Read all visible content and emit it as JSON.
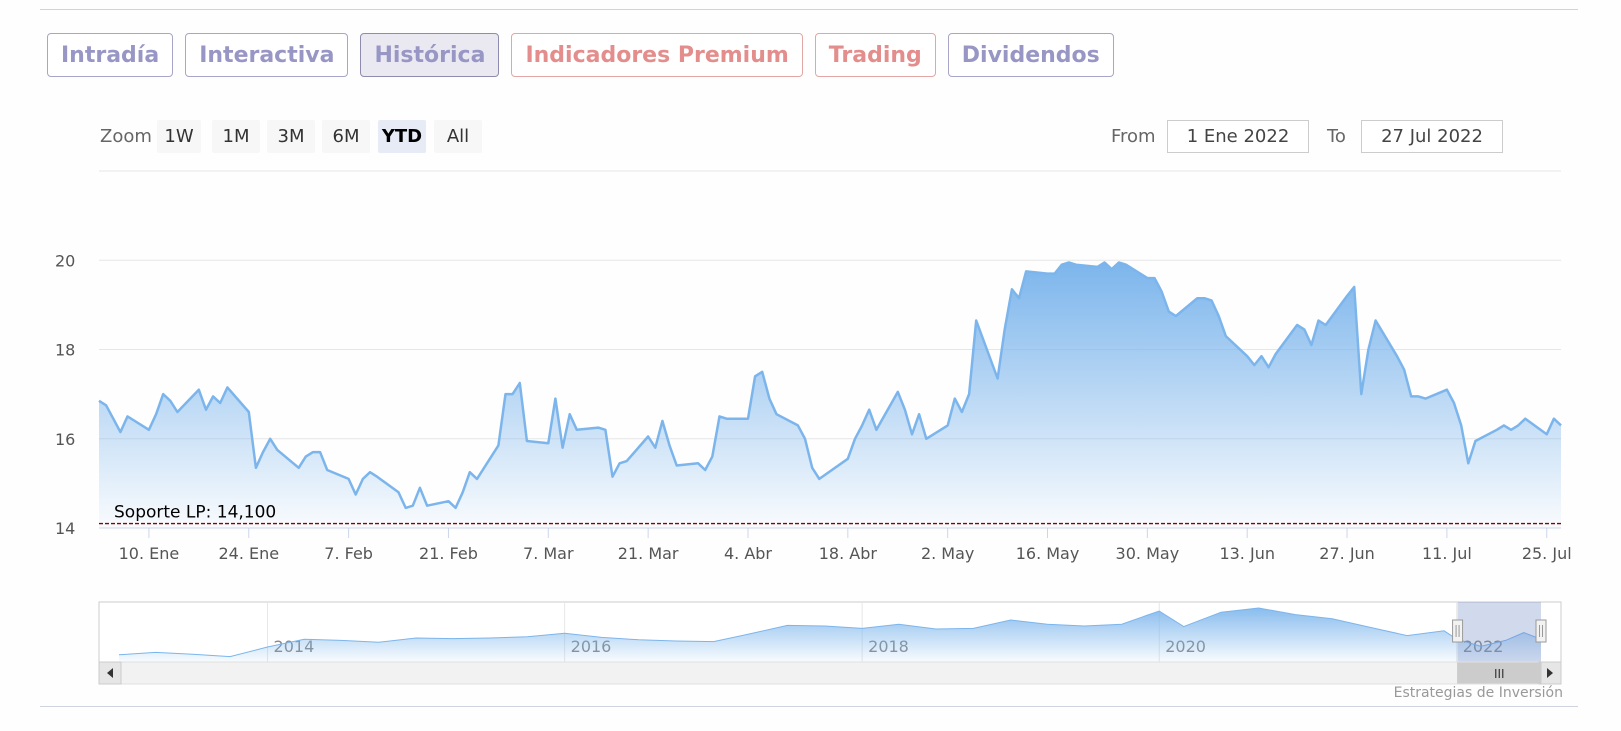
{
  "tabs": [
    {
      "label": "Intradía",
      "style": "normal"
    },
    {
      "label": "Interactiva",
      "style": "normal"
    },
    {
      "label": "Histórica",
      "style": "active"
    },
    {
      "label": "Indicadores Premium",
      "style": "premium"
    },
    {
      "label": "Trading",
      "style": "premium"
    },
    {
      "label": "Dividendos",
      "style": "normal"
    }
  ],
  "range_selector": {
    "zoom_label": "Zoom",
    "buttons": [
      "1W",
      "1M",
      "3M",
      "6M",
      "YTD",
      "All"
    ],
    "selected": "YTD",
    "from_label": "From",
    "from_value": "1 Ene 2022",
    "to_label": "To",
    "to_value": "27 Jul 2022"
  },
  "credit": "Estrategias de Inversión",
  "colors": {
    "series_line": "#7cb5ec",
    "support_line": "#8b0000",
    "tab_text": "#9896c5",
    "premium_text": "#e38e8c"
  },
  "chart_data": {
    "type": "area",
    "ylim": [
      14,
      22
    ],
    "yticks": [
      14,
      16,
      18,
      20
    ],
    "xlim": [
      "2022-01-03",
      "2022-07-27"
    ],
    "xticks": [
      {
        "date": "2022-01-10",
        "label": "10. Ene"
      },
      {
        "date": "2022-01-24",
        "label": "24. Ene"
      },
      {
        "date": "2022-02-07",
        "label": "7. Feb"
      },
      {
        "date": "2022-02-21",
        "label": "21. Feb"
      },
      {
        "date": "2022-03-07",
        "label": "7. Mar"
      },
      {
        "date": "2022-03-21",
        "label": "21. Mar"
      },
      {
        "date": "2022-04-04",
        "label": "4. Abr"
      },
      {
        "date": "2022-04-18",
        "label": "18. Abr"
      },
      {
        "date": "2022-05-02",
        "label": "2. May"
      },
      {
        "date": "2022-05-16",
        "label": "16. May"
      },
      {
        "date": "2022-05-30",
        "label": "30. May"
      },
      {
        "date": "2022-06-13",
        "label": "13. Jun"
      },
      {
        "date": "2022-06-27",
        "label": "27. Jun"
      },
      {
        "date": "2022-07-11",
        "label": "11. Jul"
      },
      {
        "date": "2022-07-25",
        "label": "25. Jul"
      }
    ],
    "support": {
      "value": 14.1,
      "label": "Soporte LP: 14,100"
    },
    "points": [
      [
        "2022-01-03",
        16.85
      ],
      [
        "2022-01-04",
        16.75
      ],
      [
        "2022-01-05",
        16.45
      ],
      [
        "2022-01-06",
        16.15
      ],
      [
        "2022-01-07",
        16.5
      ],
      [
        "2022-01-10",
        16.2
      ],
      [
        "2022-01-11",
        16.55
      ],
      [
        "2022-01-12",
        17.0
      ],
      [
        "2022-01-13",
        16.85
      ],
      [
        "2022-01-14",
        16.6
      ],
      [
        "2022-01-17",
        17.1
      ],
      [
        "2022-01-18",
        16.65
      ],
      [
        "2022-01-19",
        16.95
      ],
      [
        "2022-01-20",
        16.8
      ],
      [
        "2022-01-21",
        17.15
      ],
      [
        "2022-01-24",
        16.6
      ],
      [
        "2022-01-25",
        15.35
      ],
      [
        "2022-01-26",
        15.7
      ],
      [
        "2022-01-27",
        16.0
      ],
      [
        "2022-01-28",
        15.75
      ],
      [
        "2022-01-31",
        15.35
      ],
      [
        "2022-02-01",
        15.6
      ],
      [
        "2022-02-02",
        15.7
      ],
      [
        "2022-02-03",
        15.7
      ],
      [
        "2022-02-04",
        15.3
      ],
      [
        "2022-02-07",
        15.1
      ],
      [
        "2022-02-08",
        14.75
      ],
      [
        "2022-02-09",
        15.1
      ],
      [
        "2022-02-10",
        15.25
      ],
      [
        "2022-02-11",
        15.15
      ],
      [
        "2022-02-14",
        14.8
      ],
      [
        "2022-02-15",
        14.45
      ],
      [
        "2022-02-16",
        14.5
      ],
      [
        "2022-02-17",
        14.9
      ],
      [
        "2022-02-18",
        14.5
      ],
      [
        "2022-02-21",
        14.6
      ],
      [
        "2022-02-22",
        14.45
      ],
      [
        "2022-02-23",
        14.8
      ],
      [
        "2022-02-24",
        15.25
      ],
      [
        "2022-02-25",
        15.1
      ],
      [
        "2022-02-28",
        15.85
      ],
      [
        "2022-03-01",
        17.0
      ],
      [
        "2022-03-02",
        17.0
      ],
      [
        "2022-03-03",
        17.25
      ],
      [
        "2022-03-04",
        15.95
      ],
      [
        "2022-03-07",
        15.9
      ],
      [
        "2022-03-08",
        16.9
      ],
      [
        "2022-03-09",
        15.8
      ],
      [
        "2022-03-10",
        16.55
      ],
      [
        "2022-03-11",
        16.2
      ],
      [
        "2022-03-14",
        16.25
      ],
      [
        "2022-03-15",
        16.2
      ],
      [
        "2022-03-16",
        15.15
      ],
      [
        "2022-03-17",
        15.45
      ],
      [
        "2022-03-18",
        15.5
      ],
      [
        "2022-03-21",
        16.05
      ],
      [
        "2022-03-22",
        15.8
      ],
      [
        "2022-03-23",
        16.4
      ],
      [
        "2022-03-24",
        15.85
      ],
      [
        "2022-03-25",
        15.4
      ],
      [
        "2022-03-28",
        15.45
      ],
      [
        "2022-03-29",
        15.3
      ],
      [
        "2022-03-30",
        15.6
      ],
      [
        "2022-03-31",
        16.5
      ],
      [
        "2022-04-01",
        16.45
      ],
      [
        "2022-04-04",
        16.45
      ],
      [
        "2022-04-05",
        17.4
      ],
      [
        "2022-04-06",
        17.5
      ],
      [
        "2022-04-07",
        16.9
      ],
      [
        "2022-04-08",
        16.55
      ],
      [
        "2022-04-11",
        16.3
      ],
      [
        "2022-04-12",
        16.0
      ],
      [
        "2022-04-13",
        15.35
      ],
      [
        "2022-04-14",
        15.1
      ],
      [
        "2022-04-18",
        15.55
      ],
      [
        "2022-04-19",
        16.0
      ],
      [
        "2022-04-20",
        16.3
      ],
      [
        "2022-04-21",
        16.65
      ],
      [
        "2022-04-22",
        16.2
      ],
      [
        "2022-04-25",
        17.05
      ],
      [
        "2022-04-26",
        16.65
      ],
      [
        "2022-04-27",
        16.1
      ],
      [
        "2022-04-28",
        16.55
      ],
      [
        "2022-04-29",
        16.0
      ],
      [
        "2022-05-02",
        16.3
      ],
      [
        "2022-05-03",
        16.9
      ],
      [
        "2022-05-04",
        16.6
      ],
      [
        "2022-05-05",
        17.0
      ],
      [
        "2022-05-06",
        18.65
      ],
      [
        "2022-05-09",
        17.35
      ],
      [
        "2022-05-10",
        18.45
      ],
      [
        "2022-05-11",
        19.35
      ],
      [
        "2022-05-12",
        19.15
      ],
      [
        "2022-05-13",
        19.75
      ],
      [
        "2022-05-16",
        19.7
      ],
      [
        "2022-05-17",
        19.7
      ],
      [
        "2022-05-18",
        19.9
      ],
      [
        "2022-05-19",
        19.95
      ],
      [
        "2022-05-20",
        19.9
      ],
      [
        "2022-05-23",
        19.85
      ],
      [
        "2022-05-24",
        19.95
      ],
      [
        "2022-05-25",
        19.8
      ],
      [
        "2022-05-26",
        19.95
      ],
      [
        "2022-05-27",
        19.9
      ],
      [
        "2022-05-30",
        19.6
      ],
      [
        "2022-05-31",
        19.6
      ],
      [
        "2022-06-01",
        19.3
      ],
      [
        "2022-06-02",
        18.85
      ],
      [
        "2022-06-03",
        18.75
      ],
      [
        "2022-06-06",
        19.15
      ],
      [
        "2022-06-07",
        19.15
      ],
      [
        "2022-06-08",
        19.1
      ],
      [
        "2022-06-09",
        18.75
      ],
      [
        "2022-06-10",
        18.3
      ],
      [
        "2022-06-13",
        17.85
      ],
      [
        "2022-06-14",
        17.65
      ],
      [
        "2022-06-15",
        17.85
      ],
      [
        "2022-06-16",
        17.6
      ],
      [
        "2022-06-17",
        17.9
      ],
      [
        "2022-06-20",
        18.55
      ],
      [
        "2022-06-21",
        18.45
      ],
      [
        "2022-06-22",
        18.1
      ],
      [
        "2022-06-23",
        18.65
      ],
      [
        "2022-06-24",
        18.55
      ],
      [
        "2022-06-27",
        19.2
      ],
      [
        "2022-06-28",
        19.4
      ],
      [
        "2022-06-29",
        17.0
      ],
      [
        "2022-06-30",
        18.0
      ],
      [
        "2022-07-01",
        18.65
      ],
      [
        "2022-07-04",
        17.85
      ],
      [
        "2022-07-05",
        17.55
      ],
      [
        "2022-07-06",
        16.95
      ],
      [
        "2022-07-07",
        16.95
      ],
      [
        "2022-07-08",
        16.9
      ],
      [
        "2022-07-11",
        17.1
      ],
      [
        "2022-07-12",
        16.8
      ],
      [
        "2022-07-13",
        16.3
      ],
      [
        "2022-07-14",
        15.45
      ],
      [
        "2022-07-15",
        15.95
      ],
      [
        "2022-07-18",
        16.2
      ],
      [
        "2022-07-19",
        16.3
      ],
      [
        "2022-07-20",
        16.2
      ],
      [
        "2022-07-21",
        16.3
      ],
      [
        "2022-07-22",
        16.45
      ],
      [
        "2022-07-25",
        16.1
      ],
      [
        "2022-07-26",
        16.45
      ],
      [
        "2022-07-27",
        16.3
      ]
    ],
    "navigator": {
      "year_labels": [
        "2014",
        "2016",
        "2018",
        "2020",
        "2022"
      ],
      "selected_range": [
        "2022-01-03",
        "2022-07-27"
      ],
      "scroll_grip": "III",
      "points": [
        [
          "2013-01-01",
          1.2
        ],
        [
          "2013-04-01",
          1.6
        ],
        [
          "2013-07-01",
          1.3
        ],
        [
          "2013-10-01",
          0.9
        ],
        [
          "2014-01-01",
          2.5
        ],
        [
          "2014-04-01",
          3.8
        ],
        [
          "2014-07-01",
          3.6
        ],
        [
          "2014-10-01",
          3.3
        ],
        [
          "2015-01-01",
          4.0
        ],
        [
          "2015-04-01",
          3.9
        ],
        [
          "2015-07-01",
          4.0
        ],
        [
          "2015-10-01",
          4.2
        ],
        [
          "2016-01-01",
          4.8
        ],
        [
          "2016-04-01",
          4.1
        ],
        [
          "2016-07-01",
          3.7
        ],
        [
          "2016-10-01",
          3.5
        ],
        [
          "2017-01-01",
          3.4
        ],
        [
          "2017-04-01",
          4.7
        ],
        [
          "2017-07-01",
          6.1
        ],
        [
          "2017-10-01",
          6.0
        ],
        [
          "2018-01-01",
          5.6
        ],
        [
          "2018-04-01",
          6.3
        ],
        [
          "2018-07-01",
          5.5
        ],
        [
          "2018-10-01",
          5.6
        ],
        [
          "2019-01-01",
          7.0
        ],
        [
          "2019-04-01",
          6.3
        ],
        [
          "2019-07-01",
          6.0
        ],
        [
          "2019-10-01",
          6.3
        ],
        [
          "2020-01-01",
          8.5
        ],
        [
          "2020-03-01",
          5.9
        ],
        [
          "2020-06-01",
          8.3
        ],
        [
          "2020-09-01",
          9.0
        ],
        [
          "2020-12-01",
          7.9
        ],
        [
          "2021-03-01",
          7.2
        ],
        [
          "2021-06-01",
          5.8
        ],
        [
          "2021-09-01",
          4.4
        ],
        [
          "2021-12-01",
          5.2
        ],
        [
          "2022-01-01",
          3.8
        ],
        [
          "2022-03-01",
          2.6
        ],
        [
          "2022-05-01",
          3.6
        ],
        [
          "2022-06-15",
          4.9
        ],
        [
          "2022-07-27",
          3.8
        ]
      ],
      "year_dates": [
        "2014-01-01",
        "2016-01-01",
        "2018-01-01",
        "2020-01-01",
        "2022-01-01"
      ]
    }
  }
}
